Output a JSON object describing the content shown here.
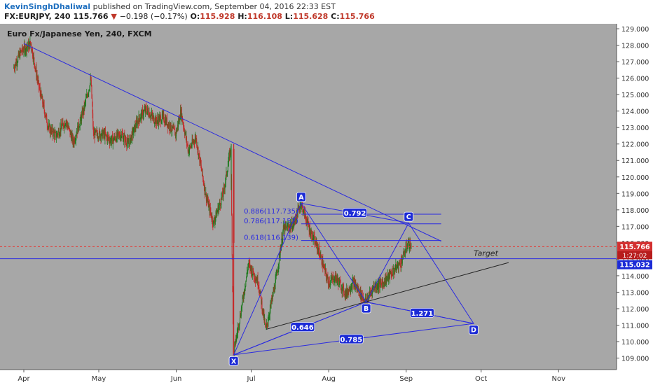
{
  "header": {
    "author": "KevinSinghDhaliwal",
    "published_text": "published on TradingView.com, September 04, 2016 22:33 EST",
    "symbol": "FX:EURJPY, 240",
    "last": "115.766",
    "arrow": "▼",
    "change": "−0.198 (−0.17%)",
    "o_label": "O:",
    "o": "115.928",
    "h_label": "H:",
    "h": "116.108",
    "l_label": "L:",
    "l": "115.628",
    "c_label": "C:",
    "c": "115.766"
  },
  "chart_data": {
    "type": "candlestick",
    "title": "Euro Fx/Japanese Yen, 240, FXCM",
    "ylim": [
      108.3,
      129.3
    ],
    "y_ticks": [
      "109.000",
      "110.000",
      "111.000",
      "112.000",
      "113.000",
      "114.000",
      "115.000",
      "116.000",
      "117.000",
      "118.000",
      "119.000",
      "120.000",
      "121.000",
      "122.000",
      "123.000",
      "124.000",
      "125.000",
      "126.000",
      "127.000",
      "128.000",
      "129.000"
    ],
    "x_ticks": [
      "Apr",
      "May",
      "Jun",
      "Jul",
      "Aug",
      "Sep",
      "Oct",
      "Nov"
    ],
    "price_badges": {
      "current": "115.766",
      "countdown": "1:27:02",
      "target_level": "115.032"
    },
    "target_label": "Target",
    "points": [
      {
        "label": "X",
        "date": "2016-06-24",
        "price": 109.2
      },
      {
        "label": "A",
        "date": "2016-07-21",
        "price": 118.4
      },
      {
        "label": "B",
        "date": "2016-08-16",
        "price": 112.4
      },
      {
        "label": "C",
        "date": "2016-09-02",
        "price": 117.2
      },
      {
        "label": "D",
        "date": "2016-09-28",
        "price": 111.1
      }
    ],
    "ratios": [
      "0.646",
      "0.785",
      "0.792",
      "1.271"
    ],
    "fib_levels": [
      {
        "label": "0.886(117.735)",
        "price": 117.735
      },
      {
        "label": "0.786(117.152)",
        "price": 117.152
      },
      {
        "label": "0.618(116.139)",
        "price": 116.139
      }
    ],
    "colors": {
      "pattern": "#2a2ae0",
      "up": "#1f7a1f",
      "down": "#c62828",
      "background": "#a7a7a7",
      "dashed_price": "#e53935"
    },
    "candles_description": "EUR/JPY 4H from early April to early September 2016; fall from 128.1 to low near 109.2 on June 24, recovery to about 115.8"
  }
}
